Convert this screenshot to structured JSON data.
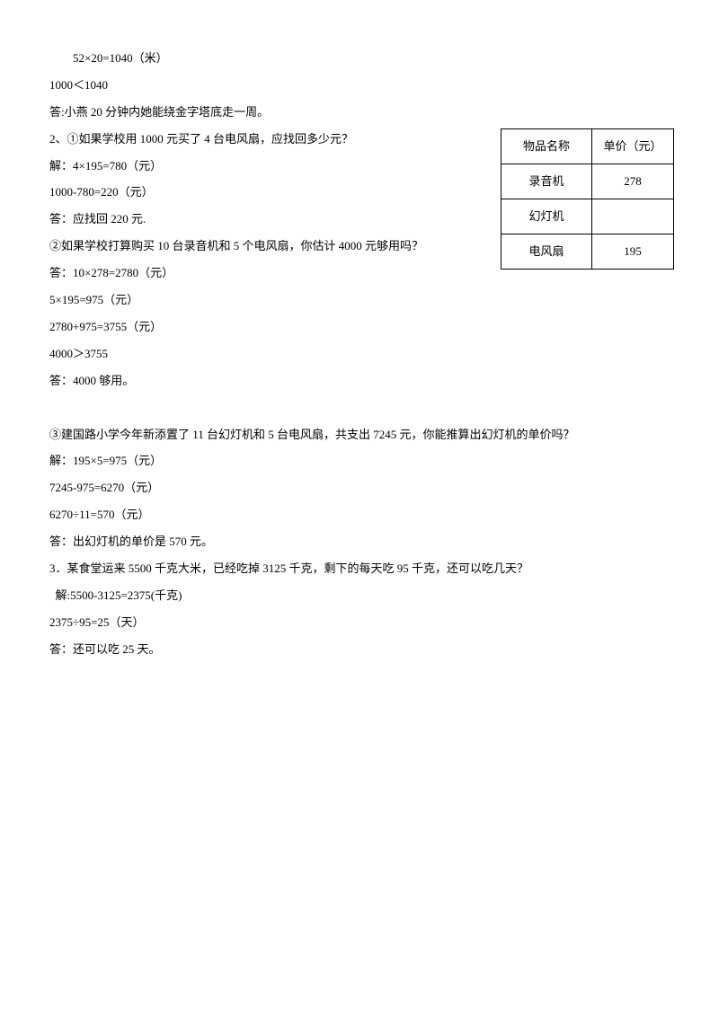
{
  "lines": {
    "l1": "52×20=1040（米）",
    "l2": "1000＜1040",
    "l3": "答:小燕 20 分钟内她能绕金字塔底走一周。",
    "l4": "2、①如果学校用 1000 元买了 4 台电风扇，应找回多少元？",
    "l5": "解：4×195=780（元）",
    "l6": "1000-780=220（元）",
    "l7": "答：应找回 220 元.",
    "l8": "②如果学校打算购买 10 台录音机和 5 个电风扇，你估计 4000 元够用吗？",
    "l9": "答：10×278=2780（元）",
    "l10": "5×195=975（元）",
    "l11": "2780+975=3755（元）",
    "l12": "4000＞3755",
    "l13": "答：4000 够用。",
    "l14": "③建国路小学今年新添置了 11 台幻灯机和 5 台电风扇，共支出 7245 元，你能推算出幻灯机的单价吗？",
    "l15": "解：195×5=975（元）",
    "l16": "7245-975=6270（元）",
    "l17": "6270÷11=570（元）",
    "l18": "答：出幻灯机的单价是 570 元。",
    "l19": "3．某食堂运来 5500 千克大米，已经吃掉 3125 千克，剩下的每天吃 95 千克，还可以吃几天？",
    "l20": "解:5500-3125=2375(千克)",
    "l21": "2375÷95=25（天）",
    "l22": "答：还可以吃 25 天。"
  },
  "table": {
    "header_name": "物品名称",
    "header_price": "单价（元）",
    "rows": [
      {
        "name": "录音机",
        "price": "278"
      },
      {
        "name": "幻灯机",
        "price": ""
      },
      {
        "name": "电风扇",
        "price": "195"
      }
    ]
  }
}
